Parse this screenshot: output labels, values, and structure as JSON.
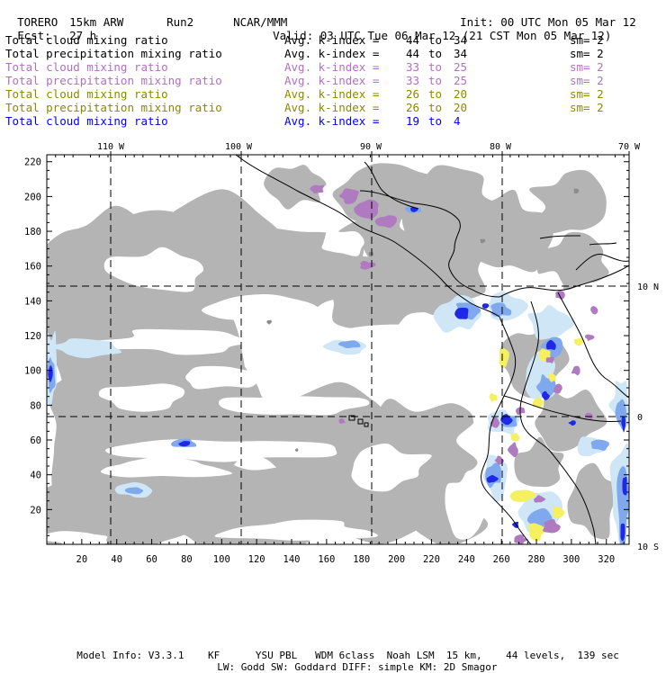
{
  "header": {
    "model": "TORERO",
    "resolution": "15km ARW",
    "run": "Run2",
    "org": "NCAR/MMM",
    "init": "Init: 00 UTC Mon 05 Mar 12",
    "fcst_label": "Fcst:",
    "fcst_value": "27 h",
    "valid": "Valid: 03 UTC Tue 06 Mar 12 (21 CST Mon 05 Mar 12)"
  },
  "legend": [
    {
      "field": "Total cloud mixing ratio",
      "kindex_label": "Avg. k-index =",
      "k_from": "44",
      "to": "to",
      "k_to": "34",
      "sm": "sm= 2",
      "color": "#000000"
    },
    {
      "field": "Total precipitation mixing ratio",
      "kindex_label": "Avg. k-index =",
      "k_from": "44",
      "to": "to",
      "k_to": "34",
      "sm": "sm= 2",
      "color": "#000000"
    },
    {
      "field": "Total cloud mixing ratio",
      "kindex_label": "Avg. k-index =",
      "k_from": "33",
      "to": "to",
      "k_to": "25",
      "sm": "sm= 2",
      "color": "#b070c0"
    },
    {
      "field": "Total precipitation mixing ratio",
      "kindex_label": "Avg. k-index =",
      "k_from": "33",
      "to": "to",
      "k_to": "25",
      "sm": "sm= 2",
      "color": "#b070c0"
    },
    {
      "field": "Total cloud mixing ratio",
      "kindex_label": "Avg. k-index =",
      "k_from": "26",
      "to": "to",
      "k_to": "20",
      "sm": "sm= 2",
      "color": "#8a8a00"
    },
    {
      "field": "Total precipitation mixing ratio",
      "kindex_label": "Avg. k-index =",
      "k_from": "26",
      "to": "to",
      "k_to": "20",
      "sm": "sm= 2",
      "color": "#8a8a00"
    },
    {
      "field": "Total cloud mixing ratio",
      "kindex_label": "Avg. k-index =",
      "k_from": "19",
      "to": "to",
      "k_to": "4",
      "sm": "",
      "color": "#0000ee"
    }
  ],
  "map": {
    "lon_labels": [
      "110 W",
      "100 W",
      "90 W",
      "80 W",
      "70 W"
    ],
    "lat_labels": [
      "10 N",
      "0",
      "10 S"
    ],
    "grid_x_ticks": [
      "20",
      "40",
      "60",
      "80",
      "100",
      "120",
      "140",
      "160",
      "180",
      "200",
      "220",
      "240",
      "260",
      "280",
      "300",
      "320"
    ],
    "grid_y_ticks": [
      "20",
      "40",
      "60",
      "80",
      "100",
      "120",
      "140",
      "160",
      "180",
      "200",
      "220"
    ],
    "colors": {
      "cloud_gray": "#b4b4b4",
      "dark_gray": "#8c8c8c",
      "purple": "#b07ac0",
      "yellow": "#f4f060",
      "light_blue": "#cfe6f6",
      "mid_blue": "#7fa8ee",
      "dark_blue": "#1e28e6"
    }
  },
  "footer": {
    "line1": "Model Info: V3.3.1    KF      YSU PBL   WDM 6class  Noah LSM  15 km,    44 levels,  139 sec",
    "line2": "LW: Godd SW: Goddard DIFF: simple KM: 2D Smagor"
  }
}
